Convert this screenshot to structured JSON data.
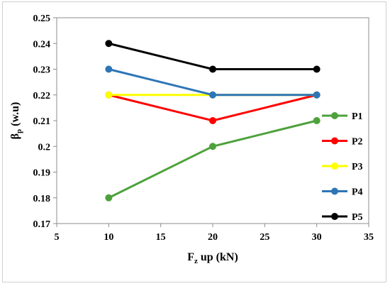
{
  "chart_data": {
    "type": "line",
    "xlabel": "F",
    "xlabel_sub": "z",
    "xlabel_rest": " up (kN)",
    "ylabel": "β",
    "ylabel_sub": "p",
    "ylabel_rest": " (w.u)",
    "xlim": [
      5,
      35
    ],
    "ylim": [
      0.17,
      0.25
    ],
    "x_ticks": [
      5,
      10,
      15,
      20,
      25,
      30,
      35
    ],
    "x_tick_labels": [
      "5",
      "10",
      "15",
      "20",
      "25",
      "30",
      "35"
    ],
    "y_ticks": [
      0.17,
      0.18,
      0.19,
      0.2,
      0.21,
      0.22,
      0.23,
      0.24,
      0.25
    ],
    "y_tick_labels": [
      "0.17",
      "0.18",
      "0.19",
      "0.2",
      "0.21",
      "0.22",
      "0.23",
      "0.24",
      "0.25"
    ],
    "grid": false,
    "legend_position": "right",
    "x": [
      10,
      20,
      30
    ],
    "series": [
      {
        "name": "P1",
        "color": "#4ea13c",
        "values": [
          0.18,
          0.2,
          0.21
        ]
      },
      {
        "name": "P2",
        "color": "#ff0000",
        "values": [
          0.22,
          0.21,
          0.22
        ]
      },
      {
        "name": "P3",
        "color": "#ffff00",
        "values": [
          0.22,
          0.22,
          0.22
        ]
      },
      {
        "name": "P4",
        "color": "#2e75b6",
        "values": [
          0.23,
          0.22,
          0.22
        ]
      },
      {
        "name": "P5",
        "color": "#000000",
        "values": [
          0.24,
          0.23,
          0.23
        ]
      }
    ]
  }
}
